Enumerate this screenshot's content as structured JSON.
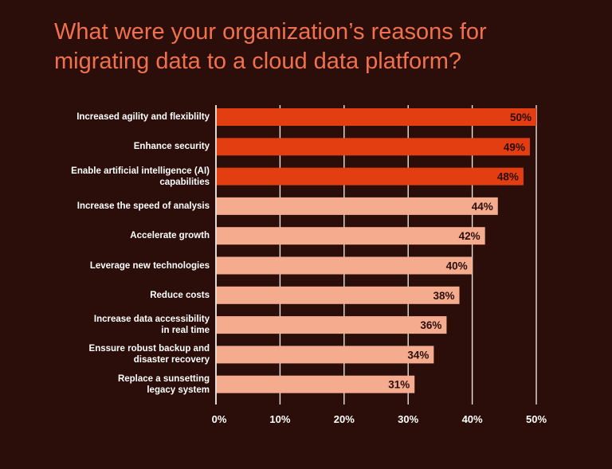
{
  "title": "What were your organization’s reasons for migrating data to a cloud data platform?",
  "colors": {
    "background": "#2b0e0a",
    "title": "#f0714b",
    "highlight": "#e33d12",
    "muted": "#f5ab8e",
    "gridline": "#e9e2de",
    "text": "#ffffff",
    "value_text": "#2b0e0a"
  },
  "chart_data": {
    "type": "bar",
    "orientation": "horizontal",
    "title": "What were your organization’s reasons for migrating data to a cloud data platform?",
    "xlabel": "",
    "ylabel": "",
    "xlim": [
      0,
      50
    ],
    "grid": true,
    "categories": [
      "Increased agility and flexiblilty",
      "Enhance security",
      "Enable artificial intelligence (AI)\ncapabilities",
      "Increase the speed of analysis",
      "Accelerate growth",
      "Leverage new technologies",
      "Reduce costs",
      "Increase data accessibility\nin real time",
      "Enssure robust backup and\ndisaster recovery",
      "Replace a sunsetting\nlegacy system"
    ],
    "values": [
      50,
      49,
      48,
      44,
      42,
      40,
      38,
      36,
      34,
      31
    ],
    "value_labels": [
      "50%",
      "49%",
      "48%",
      "44%",
      "42%",
      "40%",
      "38%",
      "36%",
      "34%",
      "31%"
    ],
    "highlighted": [
      true,
      true,
      true,
      false,
      false,
      false,
      false,
      false,
      false,
      false
    ],
    "ticks": [
      0,
      10,
      20,
      30,
      40,
      50
    ],
    "tick_labels": [
      "0%",
      "10%",
      "20%",
      "30%",
      "40%",
      "50%"
    ]
  }
}
